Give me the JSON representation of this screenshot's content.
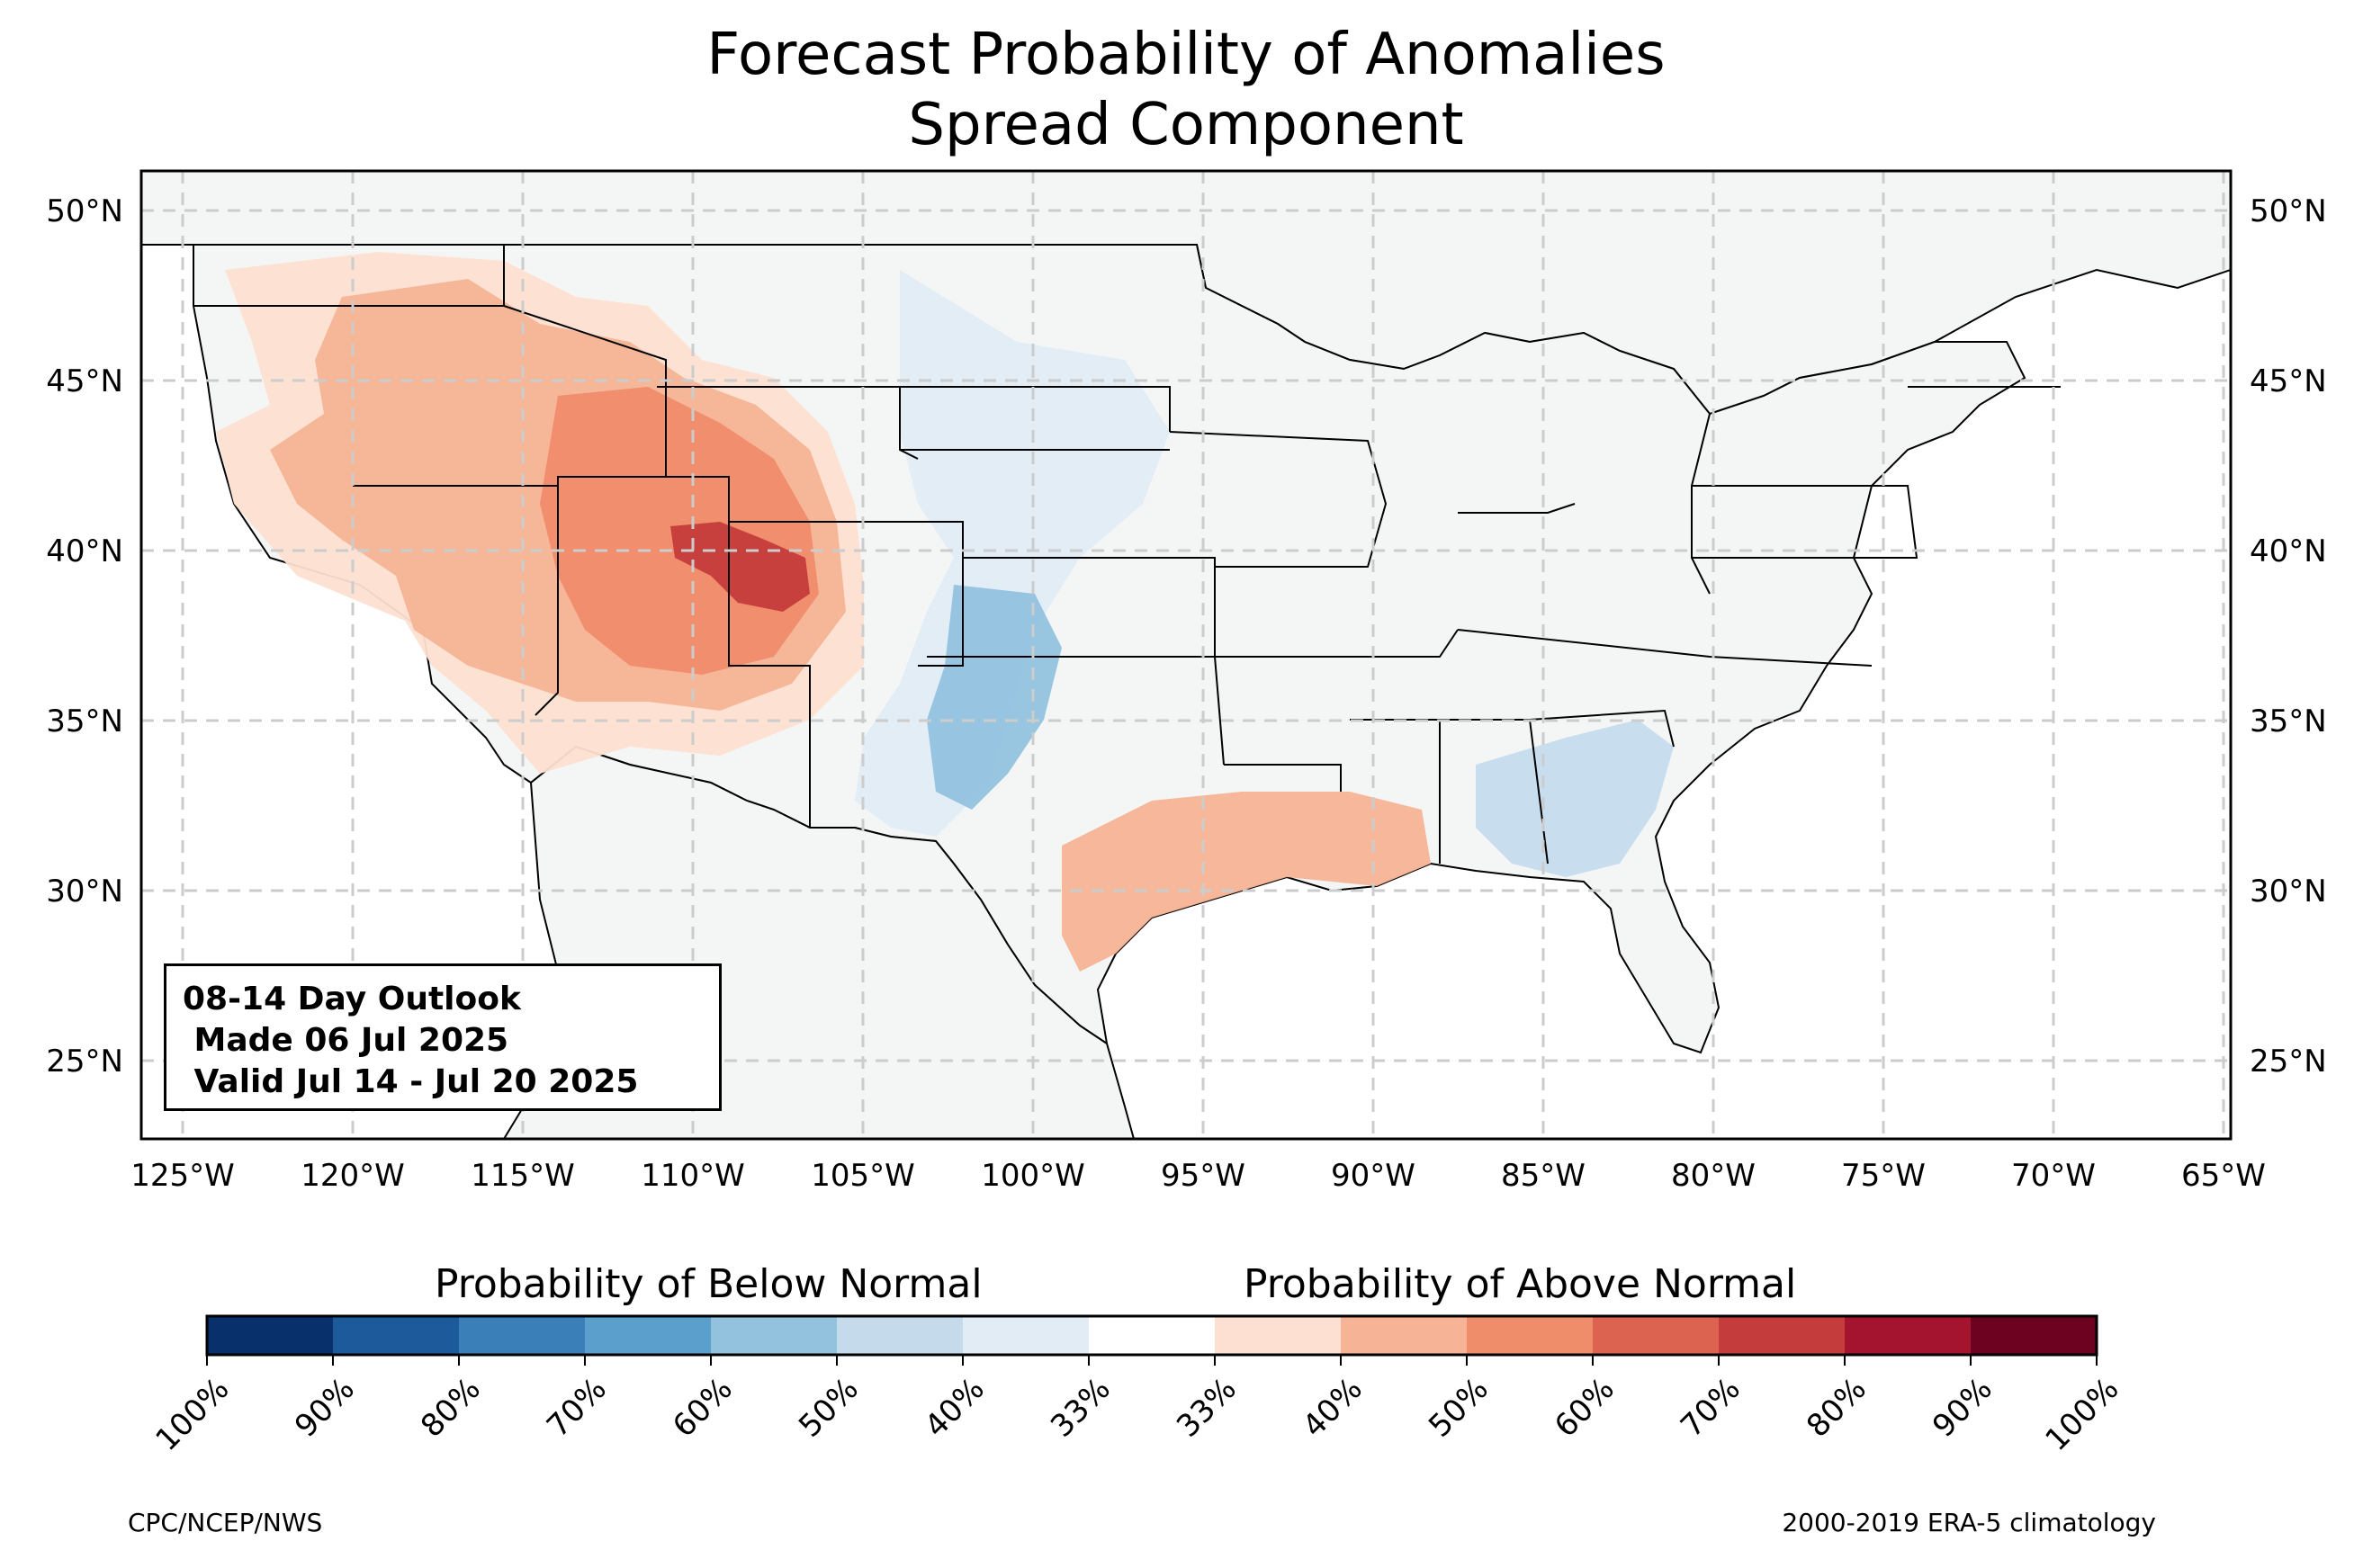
{
  "title": {
    "line1": "Forecast Probability of Anomalies",
    "line2": "Spread Component"
  },
  "axes": {
    "lon_labels": [
      "125°W",
      "120°W",
      "115°W",
      "110°W",
      "105°W",
      "100°W",
      "95°W",
      "90°W",
      "85°W",
      "80°W",
      "75°W",
      "70°W",
      "65°W"
    ],
    "lat_labels": [
      "50°N",
      "45°N",
      "40°N",
      "35°N",
      "30°N",
      "25°N"
    ],
    "lon_range": [
      -126.3,
      -64.9
    ],
    "lat_range": [
      22.7,
      51.2
    ]
  },
  "info_box": {
    "line1": "08-14 Day Outlook",
    "line2": " Made 06 Jul 2025",
    "line3": " Valid Jul 14 - Jul 20 2025"
  },
  "colorbar": {
    "below_label": "Probability of Below Normal",
    "above_label": "Probability of Above Normal",
    "ticks": [
      "100%",
      "90%",
      "80%",
      "70%",
      "60%",
      "50%",
      "40%",
      "33%",
      "33%",
      "40%",
      "50%",
      "60%",
      "70%",
      "80%",
      "90%",
      "100%"
    ],
    "colors": [
      "#08306b",
      "#1c5a9c",
      "#3a7fb8",
      "#5b9fcc",
      "#92c2de",
      "#c5dbec",
      "#e2ecf5",
      "#ffffff",
      "#fde0d2",
      "#f6b395",
      "#ef8c6a",
      "#dc6350",
      "#c43c3c",
      "#a5142e",
      "#6c0220"
    ]
  },
  "map_colors": {
    "land": "#f4f6f6",
    "ocean": "#ffffff",
    "grid": "#cccccc",
    "border": "#000000",
    "county": "#888888"
  },
  "footer": {
    "left": "CPC/NCEP/NWS",
    "right": "2000-2019 ERA-5 climatology"
  }
}
